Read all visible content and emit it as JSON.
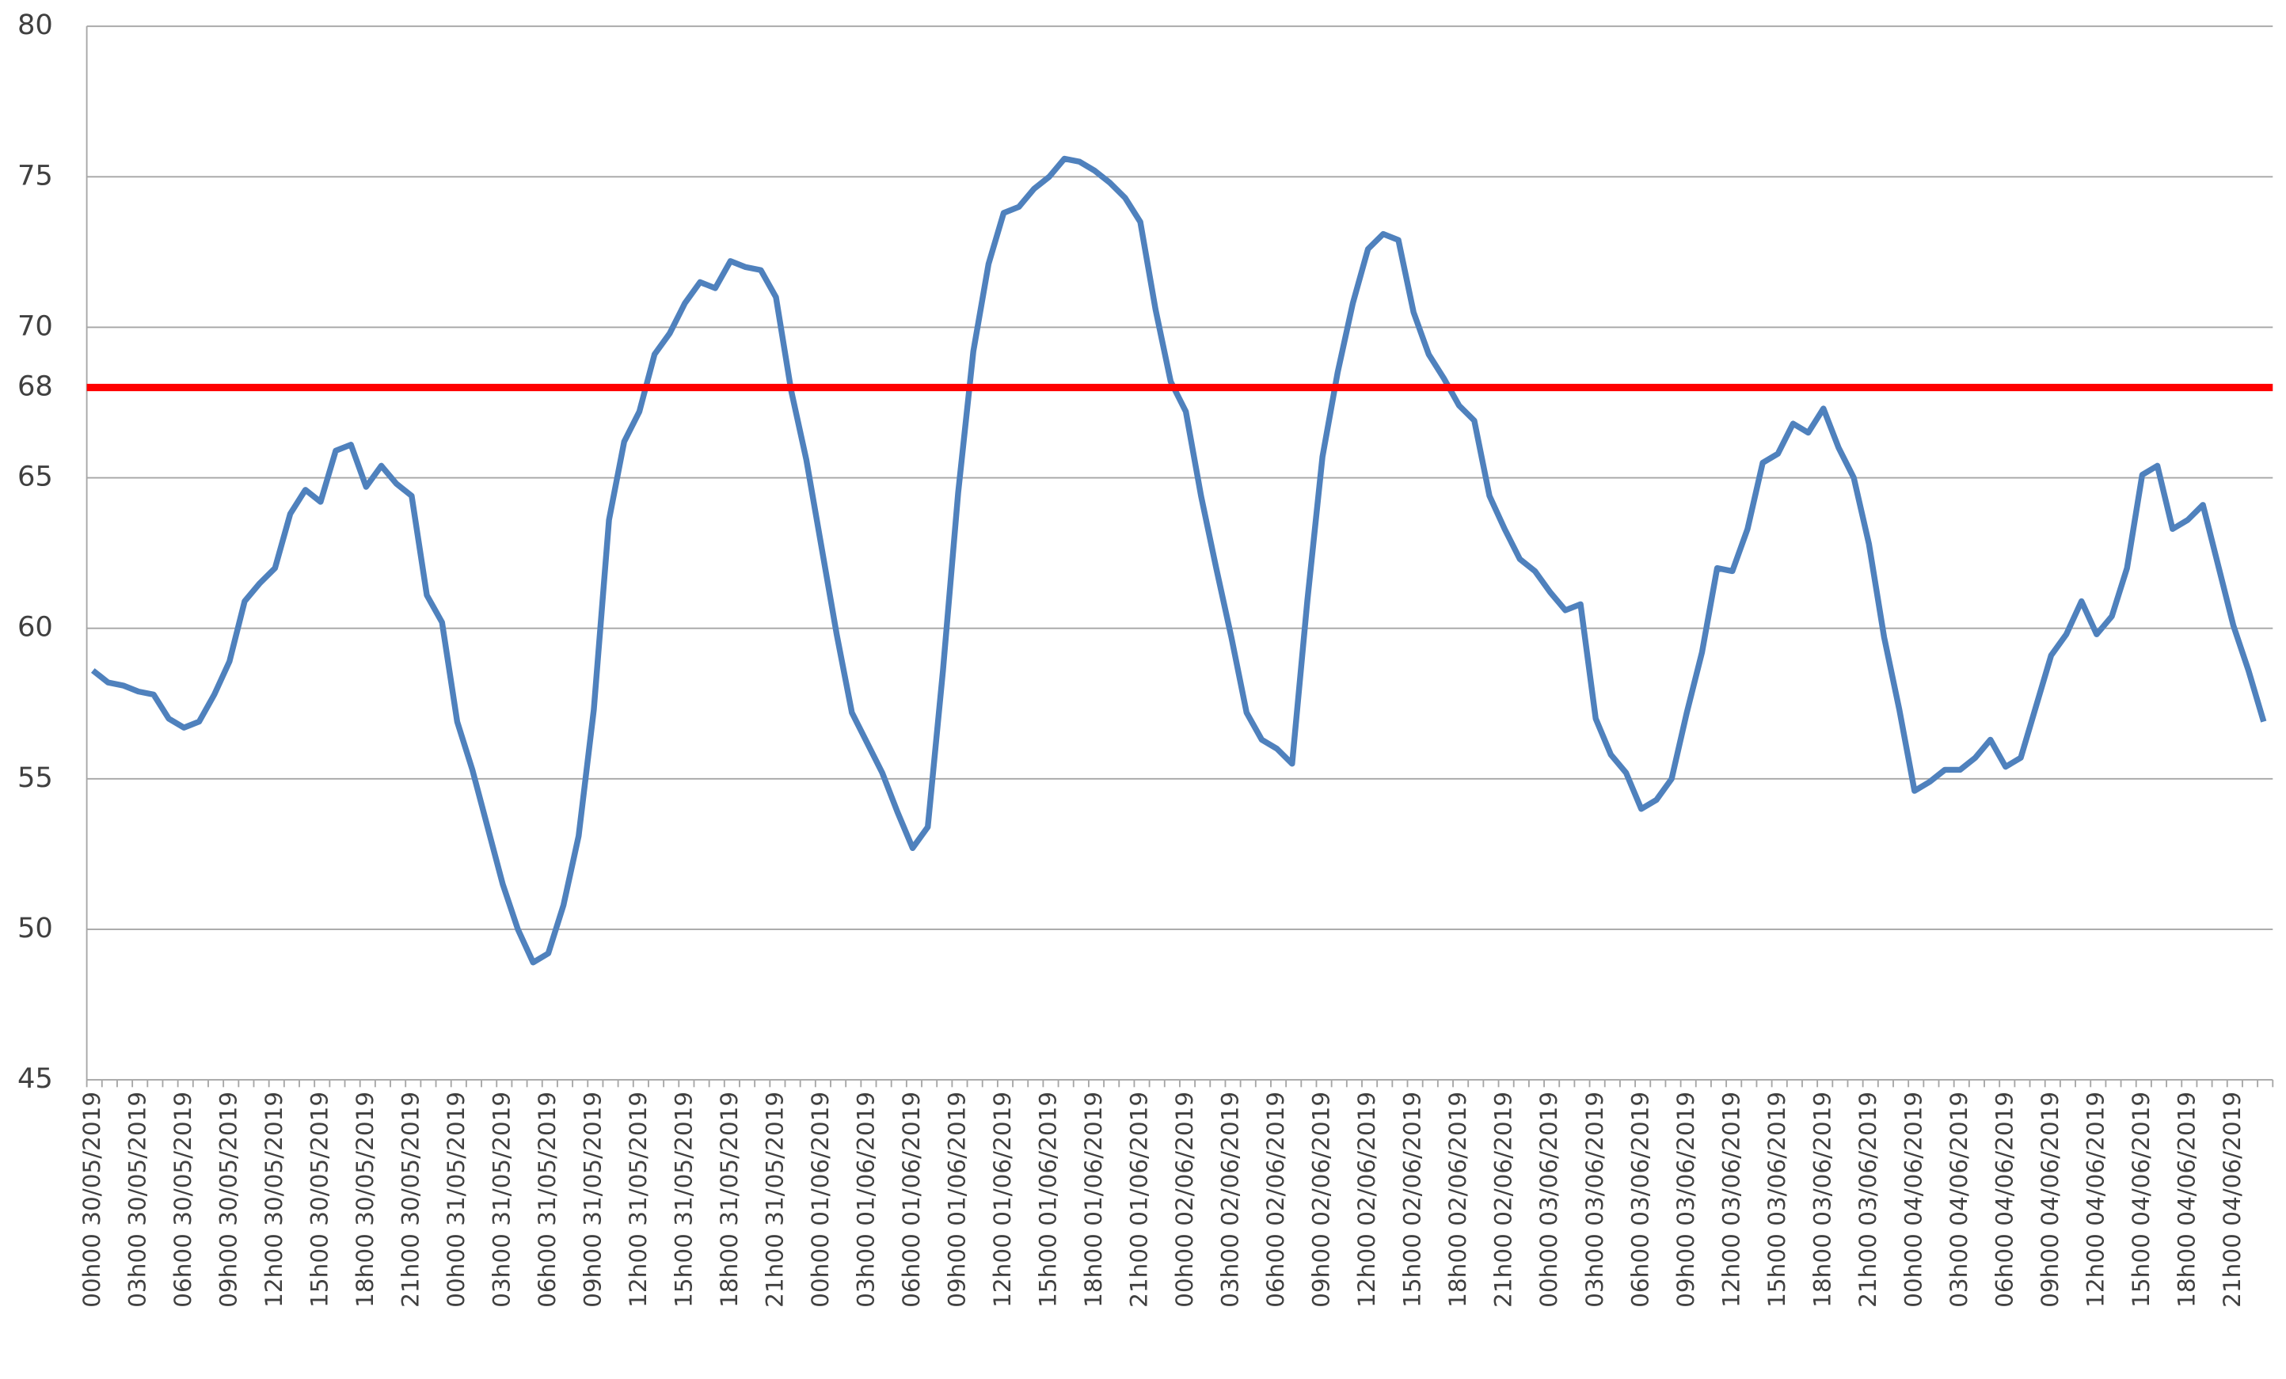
{
  "chart_data": {
    "type": "line",
    "categories": [
      "00h00 30/05/2019",
      null,
      null,
      "03h00 30/05/2019",
      null,
      null,
      "06h00 30/05/2019",
      null,
      null,
      "09h00 30/05/2019",
      null,
      null,
      "12h00 30/05/2019",
      null,
      null,
      "15h00 30/05/2019",
      null,
      null,
      "18h00 30/05/2019",
      null,
      null,
      "21h00 30/05/2019",
      null,
      null,
      "00h00 31/05/2019",
      null,
      null,
      "03h00 31/05/2019",
      null,
      null,
      "06h00 31/05/2019",
      null,
      null,
      "09h00 31/05/2019",
      null,
      null,
      "12h00 31/05/2019",
      null,
      null,
      "15h00 31/05/2019",
      null,
      null,
      "18h00 31/05/2019",
      null,
      null,
      "21h00 31/05/2019",
      null,
      null,
      "00h00 01/06/2019",
      null,
      null,
      "03h00 01/06/2019",
      null,
      null,
      "06h00 01/06/2019",
      null,
      null,
      "09h00 01/06/2019",
      null,
      null,
      "12h00 01/06/2019",
      null,
      null,
      "15h00 01/06/2019",
      null,
      null,
      "18h00 01/06/2019",
      null,
      null,
      "21h00 01/06/2019",
      null,
      null,
      "00h00 02/06/2019",
      null,
      null,
      "03h00 02/06/2019",
      null,
      null,
      "06h00 02/06/2019",
      null,
      null,
      "09h00 02/06/2019",
      null,
      null,
      "12h00 02/06/2019",
      null,
      null,
      "15h00 02/06/2019",
      null,
      null,
      "18h00 02/06/2019",
      null,
      null,
      "21h00 02/06/2019",
      null,
      null,
      "00h00 03/06/2019",
      null,
      null,
      "03h00 03/06/2019",
      null,
      null,
      "06h00 03/06/2019",
      null,
      null,
      "09h00 03/06/2019",
      null,
      null,
      "12h00 03/06/2019",
      null,
      null,
      "15h00 03/06/2019",
      null,
      null,
      "18h00 03/06/2019",
      null,
      null,
      "21h00 03/06/2019",
      null,
      null,
      "00h00 04/06/2019",
      null,
      null,
      "03h00 04/06/2019",
      null,
      null,
      "06h00 04/06/2019",
      null,
      null,
      "09h00 04/06/2019",
      null,
      null,
      "12h00 04/06/2019",
      null,
      null,
      "15h00 04/06/2019",
      null,
      null,
      "18h00 04/06/2019",
      null,
      null,
      "21h00 04/06/2019",
      null,
      null
    ],
    "series": [
      {
        "color": "#4f81bd",
        "values": [
          58.6,
          58.2,
          58.1,
          57.9,
          57.8,
          57.0,
          56.7,
          56.9,
          57.8,
          58.9,
          60.9,
          61.5,
          62.0,
          63.8,
          64.6,
          64.2,
          65.9,
          66.1,
          64.7,
          65.4,
          64.8,
          64.4,
          61.1,
          60.2,
          56.9,
          55.3,
          53.4,
          51.5,
          50.0,
          48.9,
          49.2,
          50.8,
          53.1,
          57.3,
          63.6,
          66.2,
          67.2,
          69.1,
          69.8,
          70.8,
          71.5,
          71.3,
          72.2,
          72.0,
          71.9,
          71.0,
          67.9,
          65.6,
          62.7,
          59.8,
          57.2,
          56.2,
          55.2,
          53.9,
          52.7,
          53.4,
          58.6,
          64.5,
          69.2,
          72.1,
          73.8,
          74.0,
          74.6,
          75.0,
          75.6,
          75.5,
          75.2,
          74.8,
          74.3,
          73.5,
          70.6,
          68.2,
          67.2,
          64.4,
          62.0,
          59.7,
          57.2,
          56.3,
          56.0,
          55.5,
          60.9,
          65.7,
          68.5,
          70.8,
          72.6,
          73.1,
          72.9,
          70.5,
          69.1,
          68.3,
          67.4,
          66.9,
          64.4,
          63.3,
          62.3,
          61.9,
          61.2,
          60.6,
          60.8,
          57.0,
          55.8,
          55.2,
          54.0,
          54.3,
          55.0,
          57.2,
          59.2,
          62.0,
          61.9,
          63.3,
          65.5,
          65.8,
          66.8,
          66.5,
          67.3,
          66.0,
          65.0,
          62.8,
          59.7,
          57.3,
          54.6,
          54.9,
          55.3,
          55.3,
          55.7,
          56.3,
          55.4,
          55.7,
          57.4,
          59.1,
          59.8,
          60.9,
          59.8,
          60.4,
          62.0,
          65.1,
          65.4,
          63.3,
          63.6,
          64.1,
          62.1,
          60.1,
          58.6,
          56.9
        ]
      }
    ],
    "ylim": [
      45,
      80
    ],
    "yticks": [
      45,
      50,
      55,
      60,
      65,
      70,
      75,
      80
    ],
    "grid": true,
    "reference_line": {
      "value": 68,
      "color": "#ff0000"
    }
  }
}
